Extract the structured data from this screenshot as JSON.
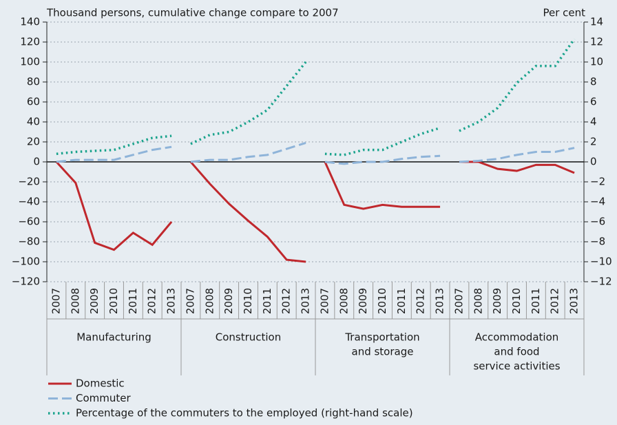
{
  "chart_data": {
    "type": "line",
    "y_label": "Thousand persons, cumulative change compare to 2007",
    "y2_label": "Per cent",
    "ylim": [
      -120,
      140
    ],
    "yticks": [
      {
        "value": -120,
        "label": "−120"
      },
      {
        "value": -100,
        "label": "−100"
      },
      {
        "value": -80,
        "label": "−80"
      },
      {
        "value": -60,
        "label": "−60"
      },
      {
        "value": -40,
        "label": "−40"
      },
      {
        "value": -20,
        "label": "−20"
      },
      0,
      20,
      40,
      60,
      80,
      100,
      120,
      140
    ],
    "y2lim": [
      -12,
      14
    ],
    "y2ticks": [
      {
        "value": -12,
        "label": "−12"
      },
      {
        "value": -10,
        "label": "−10"
      },
      {
        "value": -8,
        "label": "−8"
      },
      {
        "value": -6,
        "label": "−6"
      },
      {
        "value": -4,
        "label": "−4"
      },
      {
        "value": -2,
        "label": "−2"
      },
      0,
      2,
      4,
      6,
      8,
      10,
      12,
      14
    ],
    "grid": true,
    "groups": [
      {
        "label": [
          "Manufacturing"
        ],
        "categories": [
          "2007",
          "2008",
          "2009",
          "2010",
          "2011",
          "2012",
          "2013"
        ]
      },
      {
        "label": [
          "Construction"
        ],
        "categories": [
          "2007",
          "2008",
          "2009",
          "2010",
          "2011",
          "2012",
          "2013"
        ]
      },
      {
        "label": [
          "Transportation",
          "and storage"
        ],
        "categories": [
          "2007",
          "2008",
          "2009",
          "2010",
          "2011",
          "2012",
          "2013"
        ]
      },
      {
        "label": [
          "Accommodation",
          "and food",
          "service activities"
        ],
        "categories": [
          "2007",
          "2008",
          "2009",
          "2010",
          "2011",
          "2012",
          "2013"
        ]
      }
    ],
    "series": [
      {
        "name": "Domestic",
        "color": "#c0282d",
        "style": "solid",
        "values": [
          [
            0,
            -21,
            -81,
            -88,
            -71,
            -83,
            -60
          ],
          [
            0,
            -22,
            -42,
            -59,
            -75,
            -98,
            -100
          ],
          [
            0,
            -43,
            -47,
            -43,
            -45,
            -45,
            -45
          ],
          [
            0,
            0,
            -7,
            -9,
            -3,
            -3,
            -11
          ]
        ]
      },
      {
        "name": "Commuter",
        "color": "#8fb4d9",
        "style": "dashed",
        "values": [
          [
            0,
            2,
            2,
            2,
            7,
            12,
            15
          ],
          [
            0,
            2,
            2,
            5,
            7,
            13,
            19
          ],
          [
            0,
            -2,
            0,
            0,
            3,
            5,
            6
          ],
          [
            0,
            1,
            3,
            7,
            10,
            10,
            14
          ]
        ]
      },
      {
        "name": "Percentage of the commuters to the employed (right-hand scale)",
        "color": "#1aa38c",
        "style": "dotted",
        "axis": "y2",
        "values": [
          [
            0.8,
            1.0,
            1.1,
            1.2,
            1.8,
            2.4,
            2.6
          ],
          [
            1.8,
            2.7,
            3.0,
            4.0,
            5.2,
            7.6,
            10.0
          ],
          [
            0.8,
            0.7,
            1.2,
            1.2,
            2.0,
            2.8,
            3.4
          ],
          [
            3.1,
            4.0,
            5.4,
            7.9,
            9.6,
            9.6,
            12.3
          ]
        ]
      }
    ]
  }
}
